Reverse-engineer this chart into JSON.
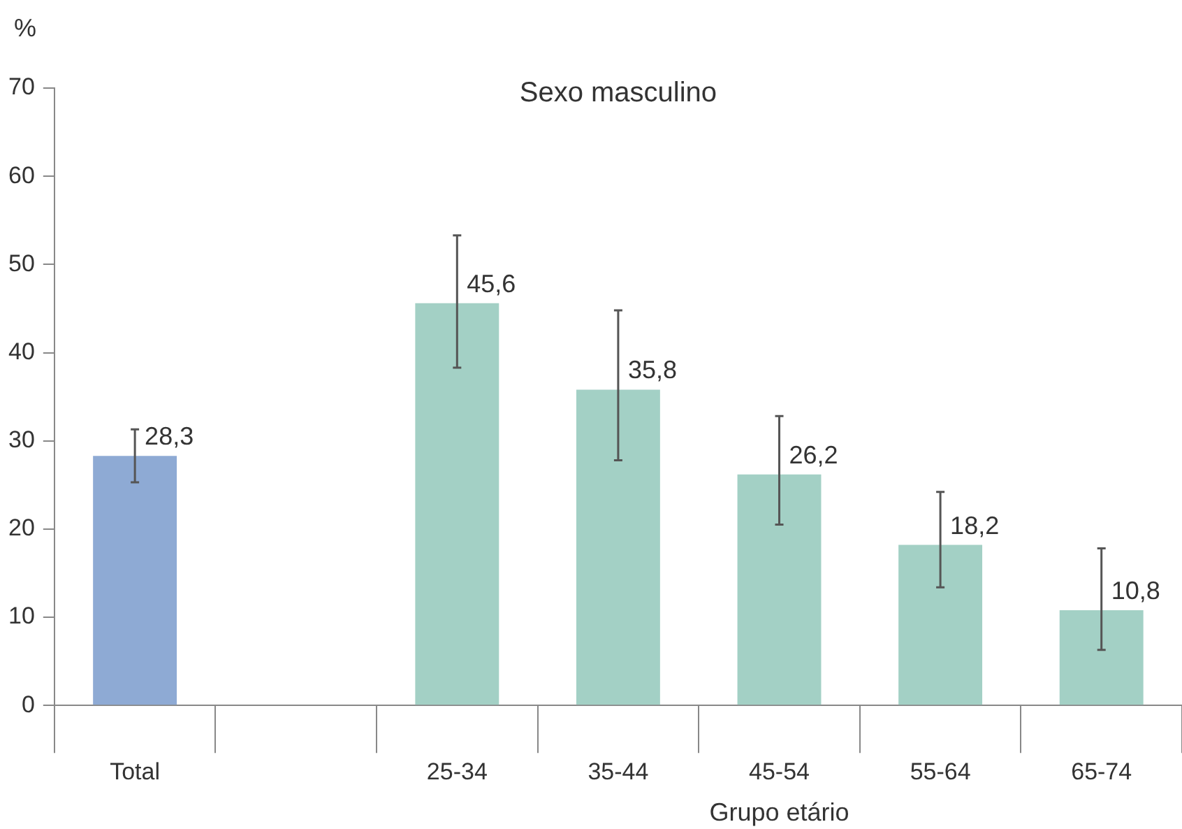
{
  "chart_data": {
    "type": "bar",
    "title": "Sexo masculino",
    "ylabel": "%",
    "xlabel": "Grupo etário",
    "categories": [
      "Total",
      null,
      "25-34",
      "35-44",
      "45-54",
      "55-64",
      "65-74"
    ],
    "values": [
      28.3,
      null,
      45.6,
      35.8,
      26.2,
      18.2,
      10.8
    ],
    "colors": [
      "#8eaad4",
      "#a3d0c5",
      "#a3d0c5",
      "#a3d0c5",
      "#a3d0c5",
      "#a3d0c5",
      "#a3d0c5"
    ],
    "errors": [
      [
        25.3,
        31.3
      ],
      null,
      [
        38.3,
        53.3
      ],
      [
        27.8,
        44.8
      ],
      [
        20.5,
        32.8
      ],
      [
        13.4,
        24.2
      ],
      [
        6.3,
        17.8
      ]
    ],
    "value_labels": [
      "28,3",
      null,
      "45,6",
      "35,8",
      "26,2",
      "18,2",
      "10,8"
    ],
    "ylim": [
      0,
      70
    ],
    "yticks": [
      0,
      10,
      20,
      30,
      40,
      50,
      60,
      70
    ],
    "grid": false,
    "legend": false
  }
}
